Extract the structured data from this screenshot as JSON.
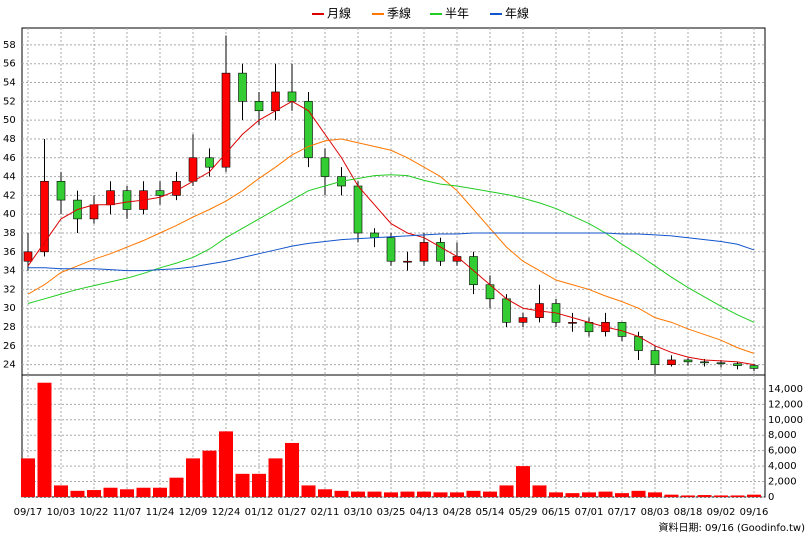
{
  "chart_data": [
    {
      "type": "candlestick",
      "open": [
        35,
        36,
        43.5,
        41.5,
        39.5,
        41,
        42.5,
        40.5,
        42.5,
        42,
        43.5,
        46,
        45,
        55,
        52,
        51,
        53,
        52,
        46,
        44,
        43,
        38,
        37.5,
        35,
        35,
        37,
        35,
        35.5,
        32.5,
        31,
        28.5,
        29,
        30.5,
        28.5,
        28.5,
        27.5,
        28.5,
        27,
        25.5,
        24,
        24.5,
        24.3,
        24.2,
        24.1,
        23.9
      ],
      "high": [
        38,
        48,
        44.5,
        42.5,
        42,
        43.5,
        43,
        43.5,
        43.5,
        44.5,
        48.5,
        47,
        59,
        56,
        53,
        56,
        56,
        53,
        47,
        45,
        43.5,
        38.5,
        38,
        36,
        38,
        37.5,
        37,
        36,
        33.5,
        31.5,
        29.5,
        32.5,
        31,
        29.5,
        29,
        29.5,
        28.5,
        27.5,
        26,
        25,
        24.7,
        24.6,
        24.5,
        24.3,
        24.1
      ],
      "low": [
        34,
        35.5,
        40,
        38,
        39,
        40,
        39.5,
        40,
        41,
        41.5,
        43,
        44,
        44.5,
        50,
        49.5,
        50,
        51,
        45,
        42,
        42,
        37,
        36.5,
        34.5,
        34,
        34.5,
        34.5,
        34.5,
        31.5,
        30,
        28,
        28,
        28.5,
        28,
        27.5,
        27,
        27,
        26.5,
        24.5,
        23,
        23.8,
        23.9,
        23.8,
        23.7,
        23.5,
        23.3
      ],
      "close": [
        36,
        43.5,
        41.5,
        39.5,
        41,
        42.5,
        40.5,
        42.5,
        42,
        43.5,
        46,
        45,
        55,
        52,
        51,
        53,
        52,
        46,
        44,
        43,
        38,
        37.5,
        35,
        35,
        37,
        35,
        35.5,
        32.5,
        31,
        28.5,
        29,
        30.5,
        28.5,
        28.5,
        27.5,
        28.5,
        27,
        25.5,
        24,
        24.5,
        24.3,
        24.2,
        24.1,
        23.9,
        23.6
      ],
      "up_color": "#ff0000",
      "down_color": "#33cc33",
      "series": [
        {
          "name": "月線",
          "color": "#dd0000",
          "values": [
            34.5,
            37,
            39.5,
            40.5,
            41,
            41,
            41.3,
            41.5,
            41.8,
            42.5,
            43.5,
            44.5,
            46.5,
            48.5,
            50,
            51,
            52,
            51,
            48.5,
            46,
            43,
            41,
            39,
            38,
            37.5,
            36.5,
            35.5,
            34,
            32.5,
            31,
            30,
            29.7,
            29.5,
            29,
            28.5,
            28,
            27.6,
            27,
            26,
            25.3,
            24.8,
            24.5,
            24.4,
            24.3,
            24
          ]
        },
        {
          "name": "季線",
          "color": "#ff7700",
          "values": [
            31.5,
            32.5,
            33.8,
            34.5,
            35.2,
            35.8,
            36.5,
            37.2,
            38,
            38.8,
            39.7,
            40.5,
            41.4,
            42.5,
            43.8,
            45,
            46.3,
            47.2,
            47.8,
            48,
            47.6,
            47.2,
            46.8,
            46,
            45,
            44,
            42.5,
            40.5,
            38.5,
            36.5,
            35,
            34,
            33,
            32.5,
            32,
            31.3,
            30.7,
            30,
            29,
            28.5,
            27.8,
            27.2,
            26.6,
            25.8,
            25.2
          ]
        },
        {
          "name": "半年",
          "color": "#22cc22",
          "values": [
            30.5,
            31,
            31.5,
            32,
            32.4,
            32.8,
            33.2,
            33.7,
            34.3,
            34.8,
            35.4,
            36.3,
            37.5,
            38.5,
            39.5,
            40.5,
            41.5,
            42.5,
            43,
            43.5,
            43.8,
            44.1,
            44.2,
            44.1,
            43.6,
            43.2,
            43,
            42.7,
            42.4,
            42.1,
            41.7,
            41.2,
            40.6,
            39.8,
            39,
            38,
            36.8,
            35.7,
            34.5,
            33.3,
            32.2,
            31.2,
            30.2,
            29.3,
            28.5
          ]
        },
        {
          "name": "年線",
          "color": "#1155cc",
          "values": [
            34.3,
            34.3,
            34.2,
            34.2,
            34.2,
            34.1,
            34,
            34,
            34.1,
            34.2,
            34.4,
            34.7,
            35,
            35.4,
            35.8,
            36.2,
            36.6,
            36.9,
            37.1,
            37.3,
            37.4,
            37.5,
            37.6,
            37.7,
            37.8,
            37.9,
            37.9,
            38,
            38,
            38,
            38,
            38,
            38,
            38,
            38,
            38,
            37.9,
            37.9,
            37.8,
            37.7,
            37.5,
            37.3,
            37.1,
            36.8,
            36.2
          ]
        }
      ],
      "ylim": [
        22.9,
        59.8
      ],
      "yticks": [
        24,
        26,
        28,
        30,
        32,
        34,
        36,
        38,
        40,
        42,
        44,
        46,
        48,
        50,
        52,
        54,
        56,
        58
      ],
      "grid": true,
      "legend": "top"
    },
    {
      "type": "bar",
      "categories": [
        "09/17",
        null,
        "10/03",
        null,
        "10/22",
        null,
        "11/07",
        null,
        "11/24",
        null,
        "12/09",
        null,
        "12/24",
        null,
        "01/12",
        null,
        "01/27",
        null,
        "02/11",
        null,
        "03/10",
        null,
        "03/25",
        null,
        "04/13",
        null,
        "04/28",
        null,
        "05/14",
        null,
        "05/29",
        null,
        "06/15",
        null,
        "07/01",
        null,
        "07/17",
        null,
        "08/03",
        null,
        "08/18",
        null,
        "09/02",
        null,
        "09/16"
      ],
      "values": [
        5000,
        14800,
        1500,
        800,
        900,
        1200,
        1000,
        1200,
        1200,
        2500,
        5000,
        6000,
        8500,
        3000,
        3000,
        5000,
        7000,
        1500,
        1000,
        800,
        700,
        700,
        600,
        700,
        700,
        600,
        600,
        800,
        700,
        1500,
        4000,
        1500,
        600,
        500,
        600,
        700,
        500,
        800,
        600,
        300,
        200,
        250,
        200,
        200,
        300
      ],
      "color": "#ff0000",
      "ylim": [
        0,
        15800
      ],
      "yticks": [
        0,
        {
          "value": 2000,
          "label": "2,000"
        },
        {
          "value": 4000,
          "label": "4,000"
        },
        {
          "value": 6000,
          "label": "6,000"
        },
        {
          "value": 8000,
          "label": "8,000"
        },
        {
          "value": 10000,
          "label": "10,000"
        },
        {
          "value": 12000,
          "label": "12,000"
        },
        {
          "value": 14000,
          "label": "14,000"
        }
      ],
      "grid": true
    }
  ],
  "footer": "資料日期: 09/16  (Goodinfo.tw)"
}
